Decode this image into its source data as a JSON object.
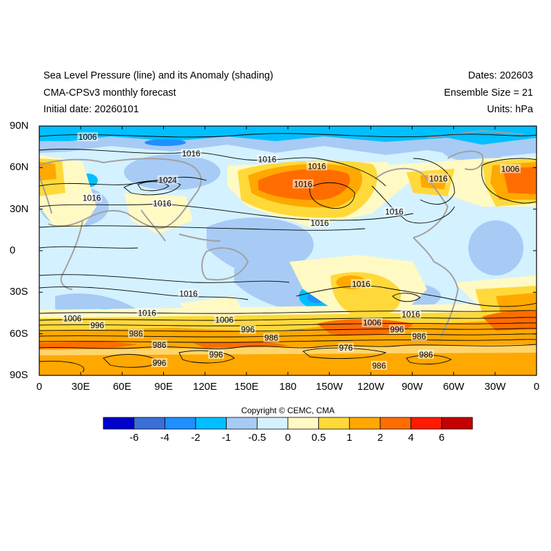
{
  "header": {
    "title": "Sea Level Pressure (line) and its Anomaly (shading)",
    "model": "CMA-CPSv3 monthly forecast",
    "initial_date": "Initial date: 20260101",
    "dates": "Dates: 202603",
    "ensemble": "Ensemble Size = 21",
    "units": "Units: hPa"
  },
  "axes": {
    "y_ticks": [
      "90N",
      "60N",
      "30N",
      "0",
      "30S",
      "60S",
      "90S"
    ],
    "x_ticks": [
      "0",
      "30E",
      "60E",
      "90E",
      "120E",
      "150E",
      "180",
      "150W",
      "120W",
      "90W",
      "60W",
      "30W",
      "0"
    ]
  },
  "contour_labels": [
    {
      "text": "1006",
      "lon": 35,
      "lat": 82
    },
    {
      "text": "1016",
      "lon": 110,
      "lat": 70
    },
    {
      "text": "1024",
      "lon": 93,
      "lat": 51
    },
    {
      "text": "1016",
      "lon": 38,
      "lat": 38
    },
    {
      "text": "1016",
      "lon": 89,
      "lat": 34
    },
    {
      "text": "1016",
      "lon": 165,
      "lat": 66
    },
    {
      "text": "1016",
      "lon": 201,
      "lat": 61
    },
    {
      "text": "1016",
      "lon": 191,
      "lat": 48
    },
    {
      "text": "1016",
      "lon": 203,
      "lat": 20
    },
    {
      "text": "1016",
      "lon": 257,
      "lat": 28
    },
    {
      "text": "1016",
      "lon": 289,
      "lat": 52
    },
    {
      "text": "1006",
      "lon": 341,
      "lat": 59
    },
    {
      "text": "1016",
      "lon": 108,
      "lat": -31
    },
    {
      "text": "1016",
      "lon": 78,
      "lat": -45
    },
    {
      "text": "1006",
      "lon": 24,
      "lat": -49
    },
    {
      "text": "996",
      "lon": 42,
      "lat": -54
    },
    {
      "text": "986",
      "lon": 70,
      "lat": -60
    },
    {
      "text": "986",
      "lon": 87,
      "lat": -68
    },
    {
      "text": "996",
      "lon": 87,
      "lat": -81
    },
    {
      "text": "996",
      "lon": 128,
      "lat": -75
    },
    {
      "text": "1006",
      "lon": 134,
      "lat": -50
    },
    {
      "text": "996",
      "lon": 151,
      "lat": -57
    },
    {
      "text": "986",
      "lon": 168,
      "lat": -63
    },
    {
      "text": "1016",
      "lon": 233,
      "lat": -24
    },
    {
      "text": "1006",
      "lon": 241,
      "lat": -52
    },
    {
      "text": "976",
      "lon": 222,
      "lat": -70
    },
    {
      "text": "996",
      "lon": 259,
      "lat": -57
    },
    {
      "text": "1016",
      "lon": 269,
      "lat": -46
    },
    {
      "text": "986",
      "lon": 275,
      "lat": -62
    },
    {
      "text": "986",
      "lon": 246,
      "lat": -83
    },
    {
      "text": "986",
      "lon": 280,
      "lat": -75
    }
  ],
  "colorbar": {
    "colors": [
      "#0000cd",
      "#3a6fd8",
      "#1e90ff",
      "#00bfff",
      "#a7cbf5",
      "#d4f1ff",
      "#fff9c4",
      "#ffd93a",
      "#ffa800",
      "#ff6d00",
      "#ff1a00",
      "#c40000"
    ],
    "labels": [
      "-6",
      "-4",
      "-2",
      "-1",
      "-0.5",
      "0",
      "0.5",
      "1",
      "2",
      "4",
      "6"
    ]
  },
  "copyright": "Copyright © CEMC, CMA"
}
